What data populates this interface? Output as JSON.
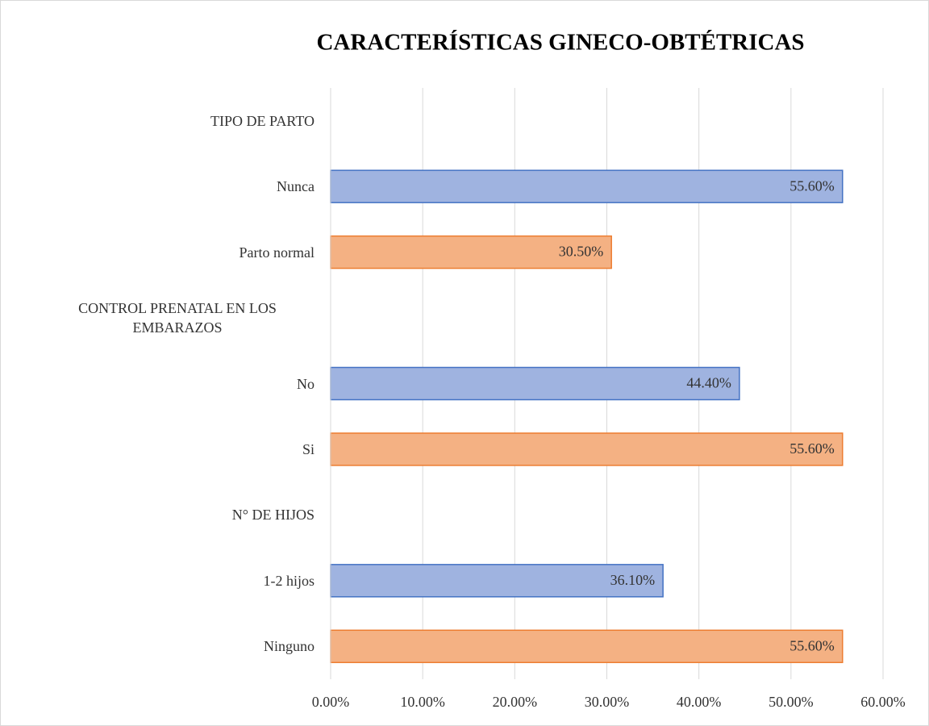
{
  "chart_data": {
    "type": "barh",
    "title": "CARACTERÍSTICAS  GINECO-OBTÉTRICAS",
    "categories": [
      "TIPO DE PARTO",
      "Nunca",
      "Parto normal",
      "CONTROL PRENATAL EN LOS EMBARAZOS",
      "No",
      "Si",
      "N° DE HIJOS",
      "1-2 hijos",
      "Ninguno"
    ],
    "values": [
      null,
      55.6,
      30.5,
      null,
      44.4,
      55.6,
      null,
      36.1,
      55.6
    ],
    "value_labels": [
      null,
      "55.60%",
      "30.50%",
      null,
      "44.40%",
      "55.60%",
      null,
      "36.10%",
      "55.60%"
    ],
    "colors": [
      null,
      "#9fb3e0",
      "#f4b183",
      null,
      "#9fb3e0",
      "#f4b183",
      null,
      "#9fb3e0",
      "#f4b183"
    ],
    "xlim": [
      0,
      60
    ],
    "xticks": [
      {
        "value": 0,
        "label": "0.00%"
      },
      {
        "value": 10,
        "label": "10.00%"
      },
      {
        "value": 20,
        "label": "20.00%"
      },
      {
        "value": 30,
        "label": "30.00%"
      },
      {
        "value": 40,
        "label": "40.00%"
      },
      {
        "value": 50,
        "label": "50.00%"
      },
      {
        "value": 60,
        "label": "60.00%"
      }
    ],
    "grid": true
  }
}
